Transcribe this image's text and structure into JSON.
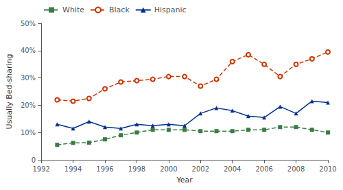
{
  "chart_data": {
    "type": "line",
    "x": [
      1993,
      1994,
      1995,
      1996,
      1997,
      1998,
      1999,
      2000,
      2001,
      2002,
      2003,
      2004,
      2005,
      2006,
      2007,
      2008,
      2009,
      2010
    ],
    "series": [
      {
        "name": "White",
        "color": "#3a7d44",
        "marker": "square",
        "line_style": "dashed",
        "values": [
          5.5,
          6.2,
          6.3,
          7.5,
          9.0,
          10.0,
          11.0,
          11.0,
          11.0,
          10.5,
          10.5,
          10.5,
          11.0,
          11.0,
          12.0,
          12.0,
          11.0,
          10.0
        ]
      },
      {
        "name": "Black",
        "color": "#cc3300",
        "marker": "circle",
        "line_style": "dashed",
        "values": [
          22.0,
          21.5,
          22.5,
          26.0,
          28.5,
          29.0,
          29.5,
          30.5,
          30.5,
          27.0,
          29.5,
          36.0,
          38.5,
          35.0,
          30.5,
          35.0,
          37.0,
          39.5
        ]
      },
      {
        "name": "Hispanic",
        "color": "#00308F",
        "marker": "triangle",
        "line_style": "solid",
        "values": [
          13.0,
          11.5,
          14.0,
          12.0,
          11.5,
          13.0,
          12.5,
          13.0,
          12.5,
          17.0,
          19.0,
          18.0,
          16.0,
          15.5,
          19.5,
          17.0,
          21.5,
          21.0
        ]
      }
    ],
    "xlabel": "Year",
    "ylabel": "Usually Bed-sharing",
    "xlim": [
      1992,
      2010
    ],
    "xticks": [
      1992,
      1994,
      1996,
      1998,
      2000,
      2002,
      2004,
      2006,
      2008,
      2010
    ],
    "ylim": [
      0,
      50
    ],
    "yticks": [
      0,
      {
        "value": 10,
        "label": "10%"
      },
      {
        "value": 20,
        "label": "20%"
      },
      {
        "value": 30,
        "label": "30%"
      },
      {
        "value": 40,
        "label": "40%"
      },
      {
        "value": 50,
        "label": "50%"
      }
    ],
    "legend": "upper left",
    "grid": false
  }
}
